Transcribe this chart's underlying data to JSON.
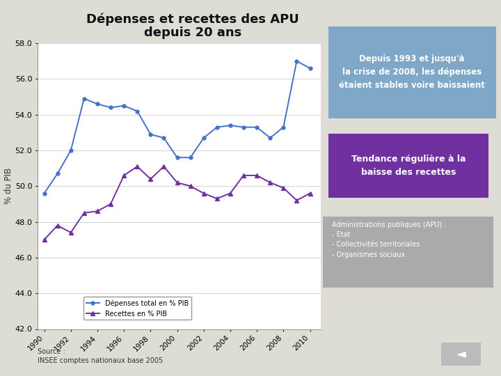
{
  "title_line1": "Dépenses et recettes des APU",
  "title_line2": "depuis 20 ans",
  "years": [
    1990,
    1991,
    1992,
    1993,
    1994,
    1995,
    1996,
    1997,
    1998,
    1999,
    2000,
    2001,
    2002,
    2003,
    2004,
    2005,
    2006,
    2007,
    2008,
    2009,
    2010
  ],
  "depenses": [
    49.6,
    50.7,
    52.0,
    54.9,
    54.6,
    54.4,
    54.5,
    54.2,
    52.9,
    52.7,
    51.6,
    51.6,
    52.7,
    53.3,
    53.4,
    53.3,
    53.3,
    52.7,
    53.3,
    57.0,
    56.6
  ],
  "recettes": [
    47.0,
    47.8,
    47.4,
    48.5,
    48.6,
    49.0,
    50.6,
    51.1,
    50.4,
    51.1,
    50.2,
    50.0,
    49.6,
    49.3,
    49.6,
    50.6,
    50.6,
    50.2,
    49.9,
    49.2,
    49.6
  ],
  "depenses_color": "#4472C4",
  "recettes_color": "#7030A0",
  "ylabel": "% du PIB",
  "ylim": [
    42.0,
    58.0
  ],
  "yticks": [
    42.0,
    44.0,
    46.0,
    48.0,
    50.0,
    52.0,
    54.0,
    56.0,
    58.0
  ],
  "legend_depenses": "Dépenses total en % PIB",
  "legend_recettes": "Recettes en % PIB",
  "bg_color": "#DDDDD5",
  "plot_bg_color": "#FFFFFF",
  "box1_text": "Depuis 1993 et jusqu'à\nla crise de 2008, les dépenses\nétaient stables voire baissaient",
  "box1_bg": "#7FA8C8",
  "box1_fg": "#FFFFFF",
  "box2_text": "Tendance régulière à la\nbaisse des recettes",
  "box2_bg": "#7030A0",
  "box2_fg": "#FFFFFF",
  "box3_title": "Administrations publiques (APU) :",
  "box3_lines": [
    "- Etat",
    "- Collectivités territoriales",
    "- Organismes sociaux"
  ],
  "box3_bg": "#AAAAAA",
  "box3_fg": "#FFFFFF",
  "source_text": "Source :\nINSEE comptes nationaux base 2005",
  "arrow_bg": "#BBBBBB",
  "arrow_fg": "#FFFFFF"
}
